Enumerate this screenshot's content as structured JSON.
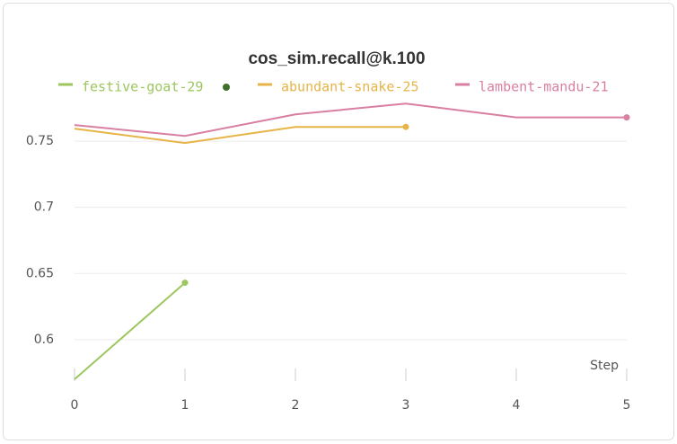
{
  "chart_data": {
    "type": "line",
    "title": "cos_sim.recall@k.100",
    "x_label": "Step",
    "x": [
      0,
      1,
      2,
      3,
      4,
      5
    ],
    "xlim": [
      0,
      5
    ],
    "xticks": [
      0,
      1,
      2,
      3,
      4,
      5
    ],
    "ylim": [
      0.57,
      0.782
    ],
    "yticks": [
      0.6,
      0.65,
      0.7,
      0.75
    ],
    "grid": true,
    "series": [
      {
        "name": "festive-goat-29",
        "color": "#9cc65e",
        "values": [
          0.57,
          0.643,
          null,
          null,
          null,
          null
        ]
      },
      {
        "name": "abundant-snake-25",
        "color": "#e6b447",
        "values": [
          0.7595,
          0.7486,
          0.7608,
          0.7608,
          null,
          null
        ]
      },
      {
        "name": "lambent-mandu-21",
        "color": "#d97fa2",
        "values": [
          0.7622,
          0.754,
          0.7703,
          0.7784,
          0.768,
          0.768
        ]
      }
    ]
  }
}
